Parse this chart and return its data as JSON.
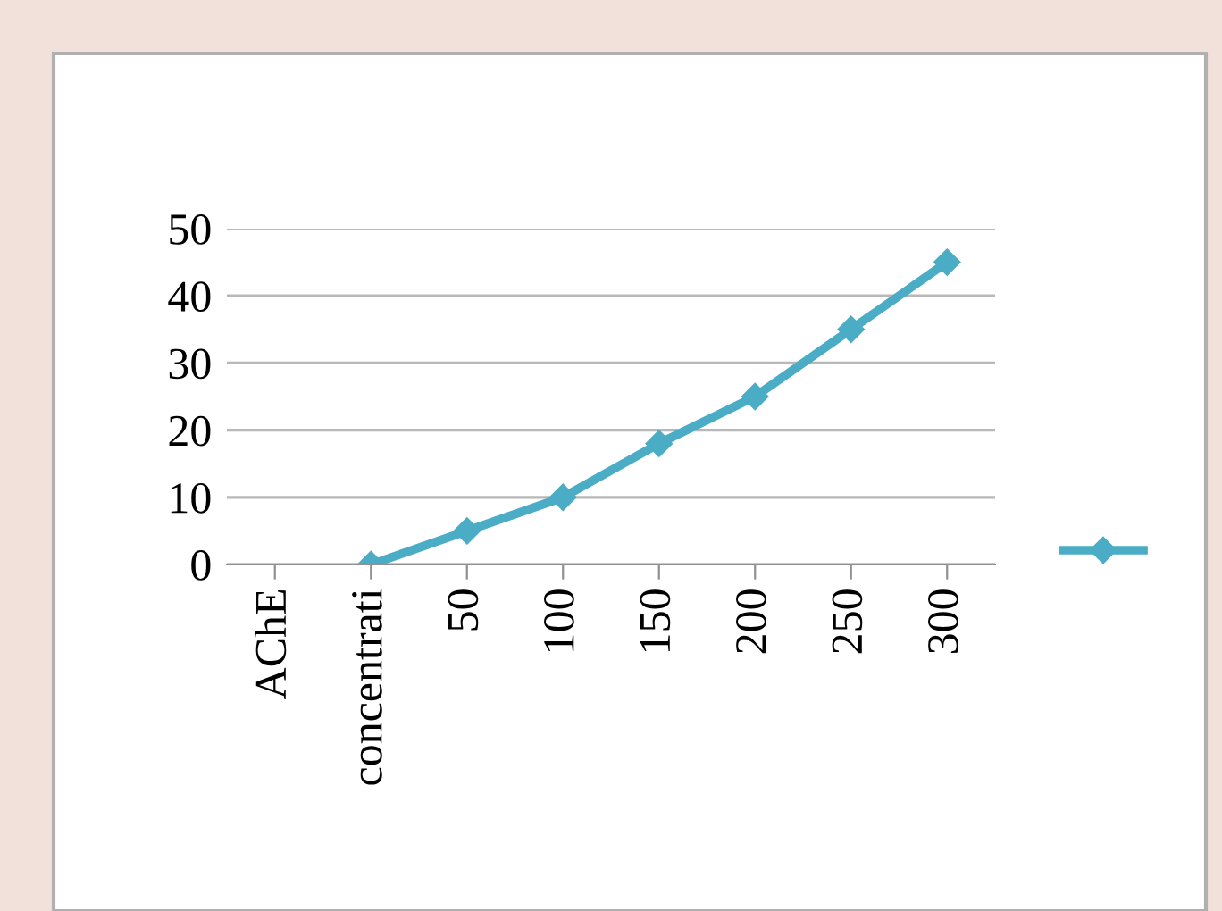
{
  "chart_data": {
    "type": "line",
    "categories": [
      "AChE",
      "concentrati",
      "50",
      "100",
      "150",
      "200",
      "250",
      "300"
    ],
    "series": [
      {
        "color": "#4bacc6",
        "values": [
          null,
          0,
          5,
          10,
          18,
          25,
          35,
          45
        ]
      }
    ],
    "ylim": [
      0,
      50
    ],
    "yticks": [
      0,
      10,
      20,
      30,
      40,
      50
    ],
    "grid": "y",
    "marker": "diamond",
    "line_style": "solid"
  }
}
